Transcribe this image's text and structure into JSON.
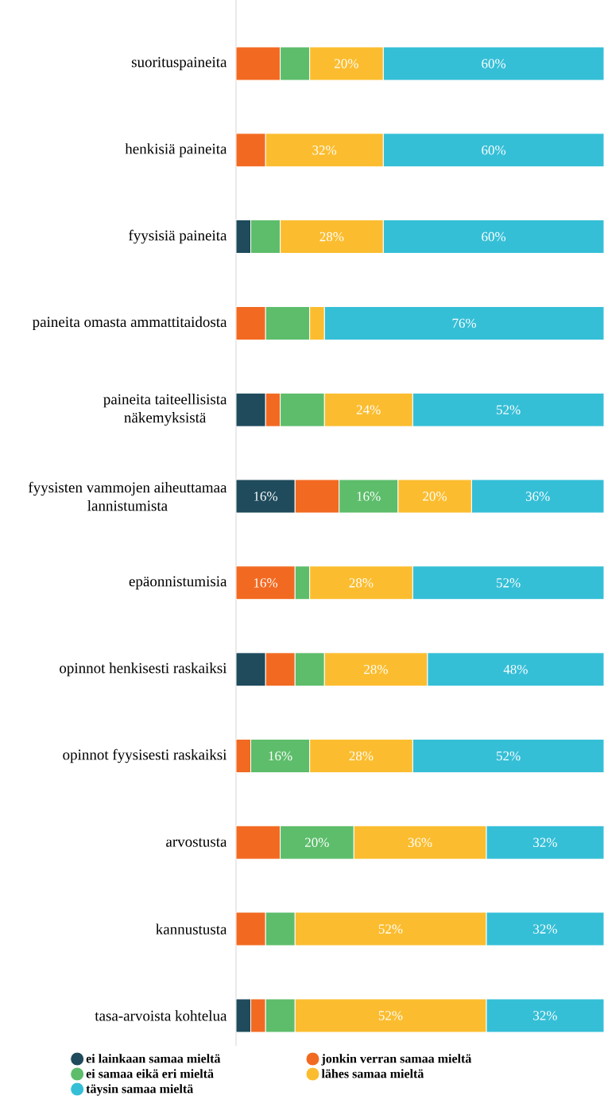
{
  "chart_data": {
    "type": "bar",
    "orientation": "horizontal",
    "stacked": true,
    "legend": "bottom",
    "tick_labels": "y",
    "categories": [
      "suorituspaineita",
      "henkisiä paineita",
      "fyysisiä paineita",
      "paineita omasta ammattitaidosta",
      "paineita taiteellisista näkemyksistä",
      "fyysisten vammojen aiheuttamaa lannistumista",
      "epäonnistumisia",
      "opinnot henkisesti raskaiksi",
      "opinnot fyysisesti raskaiksi",
      "arvostusta",
      "kannustusta",
      "tasa-arvoista kohtelua"
    ],
    "series": [
      {
        "name": "ei lainkaan samaa mieltä",
        "color": "#1f4b5c",
        "values": [
          0,
          0,
          4,
          0,
          8,
          16,
          0,
          8,
          0,
          0,
          0,
          4
        ],
        "value_labels": [
          null,
          null,
          null,
          null,
          null,
          "16%",
          null,
          null,
          null,
          null,
          null,
          null
        ]
      },
      {
        "name": "jonkin verran samaa mieltä",
        "color": "#f26a22",
        "values": [
          12,
          8,
          0,
          8,
          4,
          12,
          16,
          8,
          4,
          12,
          8,
          4
        ],
        "value_labels": [
          null,
          null,
          null,
          null,
          null,
          null,
          "16%",
          null,
          null,
          null,
          null,
          null
        ]
      },
      {
        "name": "ei samaa eikä eri mieltä",
        "color": "#5dbd6b",
        "values": [
          8,
          0,
          8,
          12,
          12,
          16,
          4,
          8,
          16,
          20,
          8,
          8
        ],
        "value_labels": [
          null,
          null,
          null,
          null,
          null,
          "16%",
          null,
          null,
          "16%",
          "20%",
          null,
          null
        ]
      },
      {
        "name": "lähes samaa mieltä",
        "color": "#fbbd2f",
        "values": [
          20,
          32,
          28,
          4,
          24,
          20,
          28,
          28,
          28,
          36,
          52,
          52
        ],
        "value_labels": [
          "20%",
          "32%",
          "28%",
          null,
          "24%",
          "20%",
          "28%",
          "28%",
          "28%",
          "36%",
          "52%",
          "52%"
        ]
      },
      {
        "name": "täysin samaa mieltä",
        "color": "#35bfd7",
        "values": [
          60,
          60,
          60,
          76,
          52,
          36,
          52,
          48,
          52,
          32,
          32,
          32
        ],
        "value_labels": [
          "60%",
          "60%",
          "60%",
          "76%",
          "52%",
          "36%",
          "52%",
          "48%",
          "52%",
          "32%",
          "32%",
          "32%"
        ]
      }
    ]
  }
}
